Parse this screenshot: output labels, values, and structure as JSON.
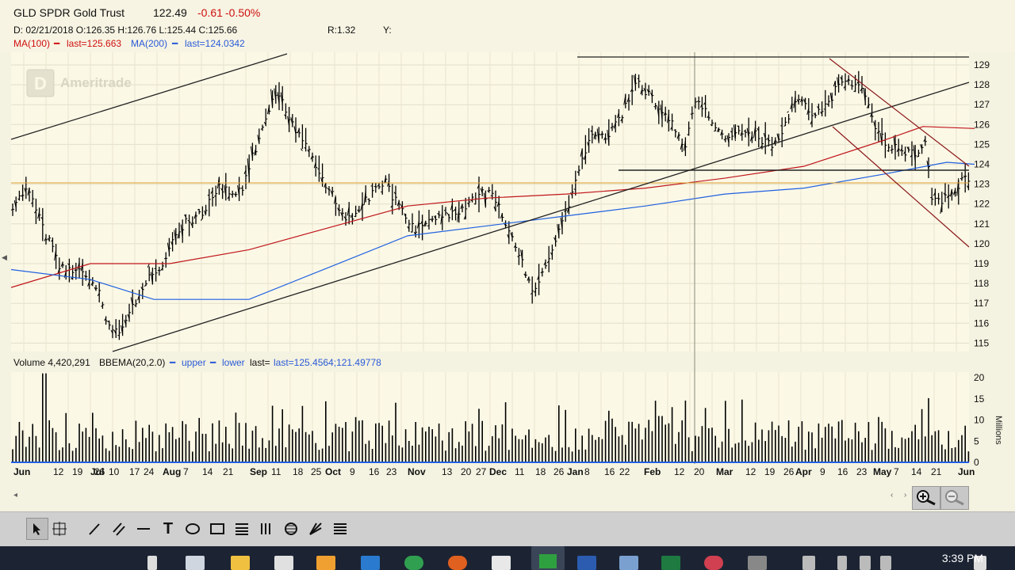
{
  "header": {
    "symbol": "GLD SPDR Gold Trust",
    "price": "122.49",
    "change": "-0.61",
    "change_pct": "-0.50%",
    "ohlc": "D: 02/21/2018 O:126.35 H:126.76 L:125.44 C:125.66",
    "r": "R:1.32",
    "y": "Y:",
    "ma100": "MA(100)",
    "ma100_last": "last=125.663",
    "ma200": "MA(200)",
    "ma200_last": "last=124.0342",
    "watermark": "Ameritrade"
  },
  "volume_header": {
    "label": "Volume 4,420,291",
    "study": "BBEMA(20,2.0)",
    "upper": "upper",
    "lower": "lower",
    "last": "last=125.4564;121.49778"
  },
  "colors": {
    "background": "#fbf8e6",
    "up": "#000000",
    "ma100": "#c0161a",
    "ma200": "#2060e0",
    "hline": "#e0a030"
  },
  "chart_data": {
    "type": "bar",
    "price_axis": {
      "ticks": [
        115,
        116,
        117,
        118,
        119,
        120,
        121,
        122,
        123,
        124,
        125,
        126,
        127,
        128,
        129
      ]
    },
    "volume_axis": {
      "ticks": [
        0,
        5,
        10,
        15,
        20
      ],
      "unit": "Millions"
    },
    "x_labels": [
      "Jun",
      "12",
      "19",
      "26",
      "Jul",
      "10",
      "17",
      "24",
      "Aug",
      "7",
      "14",
      "21",
      "Sep",
      "11",
      "18",
      "25",
      "Oct",
      "9",
      "16",
      "23",
      "Nov",
      "13",
      "20",
      "27",
      "Dec",
      "11",
      "18",
      "26",
      "Jan",
      "8",
      "16",
      "22",
      "Feb",
      "12",
      "20",
      "Mar",
      "12",
      "19",
      "26",
      "Apr",
      "9",
      "16",
      "23",
      "May",
      "7",
      "14",
      "21",
      "Jun"
    ],
    "ma100": [
      [
        0,
        117.8
      ],
      [
        100,
        119
      ],
      [
        200,
        119
      ],
      [
        300,
        119.7
      ],
      [
        400,
        120.8
      ],
      [
        500,
        121.9
      ],
      [
        600,
        122.3
      ],
      [
        700,
        122.5
      ],
      [
        800,
        122.8
      ],
      [
        900,
        123.3
      ],
      [
        1000,
        123.9
      ],
      [
        1100,
        125.2
      ],
      [
        1150,
        125.9
      ],
      [
        1215,
        125.8
      ]
    ],
    "ma200": [
      [
        0,
        118.7
      ],
      [
        100,
        118.2
      ],
      [
        180,
        117.2
      ],
      [
        300,
        117.2
      ],
      [
        400,
        118.8
      ],
      [
        500,
        120.4
      ],
      [
        600,
        120.9
      ],
      [
        700,
        121.4
      ],
      [
        800,
        121.9
      ],
      [
        900,
        122.5
      ],
      [
        1000,
        122.8
      ],
      [
        1100,
        123.5
      ],
      [
        1180,
        124.1
      ],
      [
        1215,
        124
      ]
    ]
  },
  "toolbar": {
    "tools": [
      "select",
      "crosshair",
      "pencil",
      "parallel",
      "hline",
      "text",
      "ellipse",
      "rectangle",
      "fib",
      "channel",
      "gann",
      "fan",
      "more"
    ]
  },
  "taskbar": {
    "time": "3:39 PM"
  }
}
